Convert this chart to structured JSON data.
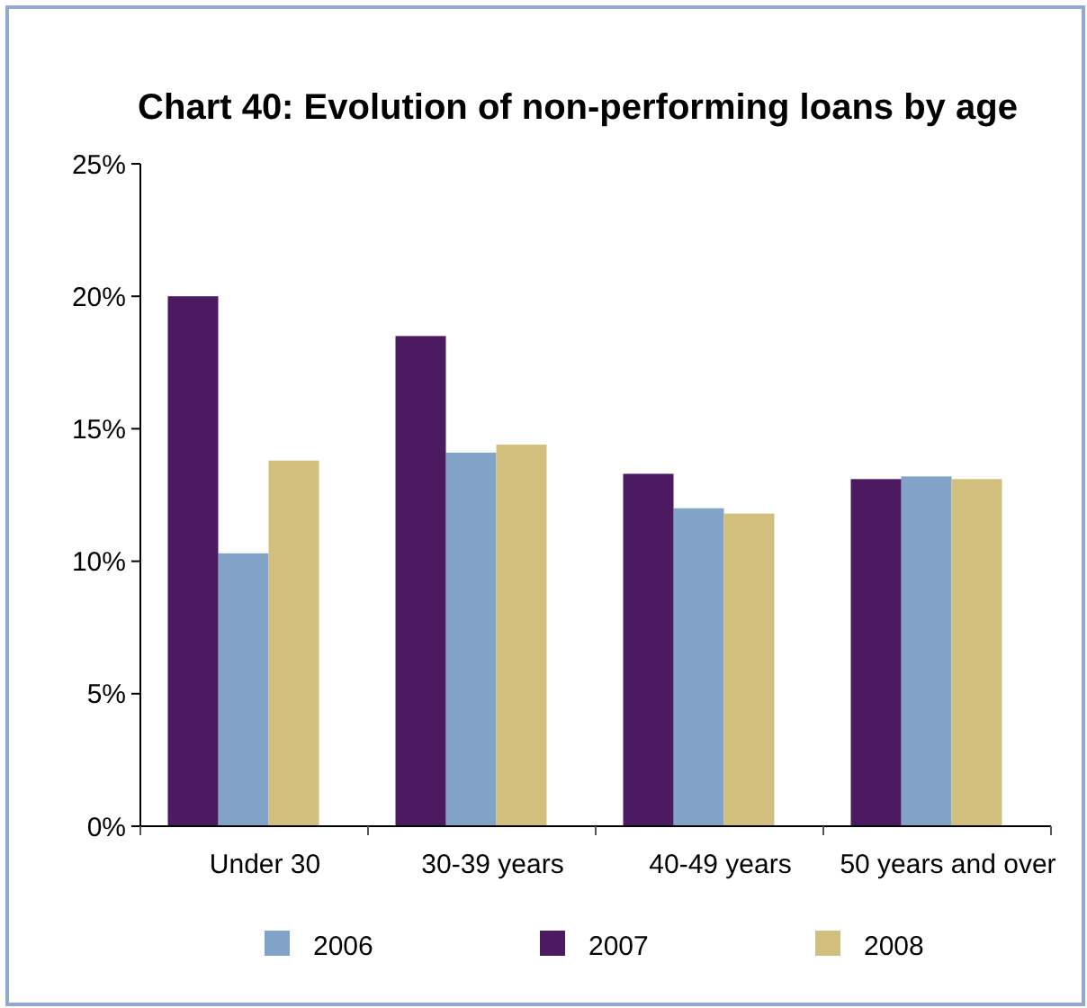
{
  "chart_data": {
    "type": "bar",
    "title": "Chart 40: Evolution of non-performing loans by age",
    "categories": [
      "Under 30",
      "30-39 years",
      "40-49 years",
      "50 years and over"
    ],
    "series": [
      {
        "name": "2006",
        "color": "#81a3c8",
        "values": [
          10.3,
          14.1,
          12.0,
          13.2
        ]
      },
      {
        "name": "2007",
        "color": "#4b1a61",
        "values": [
          20.0,
          18.5,
          13.3,
          13.1
        ]
      },
      {
        "name": "2008",
        "color": "#d3bf7d",
        "values": [
          13.8,
          14.4,
          11.8,
          13.1
        ]
      }
    ],
    "ylim": [
      0,
      25
    ],
    "yticks": [
      {
        "value": 0,
        "label": "0%"
      },
      {
        "value": 5,
        "label": "5%"
      },
      {
        "value": 10,
        "label": "10%"
      },
      {
        "value": 15,
        "label": "15%"
      },
      {
        "value": 20,
        "label": "20%"
      },
      {
        "value": 25,
        "label": "25%"
      }
    ],
    "grid": false,
    "legend": "bottom"
  }
}
